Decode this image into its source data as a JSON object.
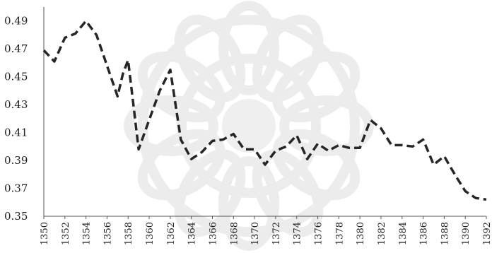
{
  "chart_data": {
    "type": "line",
    "title": "",
    "xlabel": "",
    "ylabel": "",
    "ylim": [
      0.35,
      0.5
    ],
    "yticks": [
      "0.35",
      "0.37",
      "0.39",
      "0.41",
      "0.43",
      "0.45",
      "0.47",
      "0.49"
    ],
    "xlim": [
      1350,
      1392
    ],
    "xticks": [
      "1350",
      "1352",
      "1354",
      "1356",
      "1358",
      "1360",
      "1362",
      "1364",
      "1366",
      "1368",
      "1370",
      "1372",
      "1374",
      "1376",
      "1378",
      "1380",
      "1382",
      "1384",
      "1386",
      "1388",
      "1390",
      "1392"
    ],
    "grid": false,
    "legend": "none",
    "series": [
      {
        "line_style": "dashed",
        "color": "#262626",
        "x": [
          1350,
          1351,
          1352,
          1353,
          1354,
          1355,
          1356,
          1357,
          1357.5,
          1358,
          1358.5,
          1359,
          1360,
          1361,
          1362,
          1363,
          1364,
          1365,
          1366,
          1367,
          1368,
          1369,
          1370,
          1371,
          1372,
          1373,
          1374,
          1375,
          1376,
          1377,
          1378,
          1379,
          1380,
          1381,
          1382,
          1383,
          1384,
          1385,
          1386,
          1387,
          1388,
          1389,
          1390,
          1391,
          1392
        ],
        "values": [
          0.469,
          0.461,
          0.478,
          0.481,
          0.49,
          0.48,
          0.458,
          0.436,
          0.452,
          0.462,
          0.43,
          0.398,
          0.419,
          0.44,
          0.455,
          0.405,
          0.391,
          0.396,
          0.404,
          0.405,
          0.409,
          0.398,
          0.398,
          0.387,
          0.397,
          0.4,
          0.408,
          0.391,
          0.402,
          0.397,
          0.401,
          0.399,
          0.399,
          0.419,
          0.413,
          0.401,
          0.401,
          0.4,
          0.405,
          0.387,
          0.393,
          0.38,
          0.368,
          0.363,
          0.362
        ]
      }
    ]
  }
}
